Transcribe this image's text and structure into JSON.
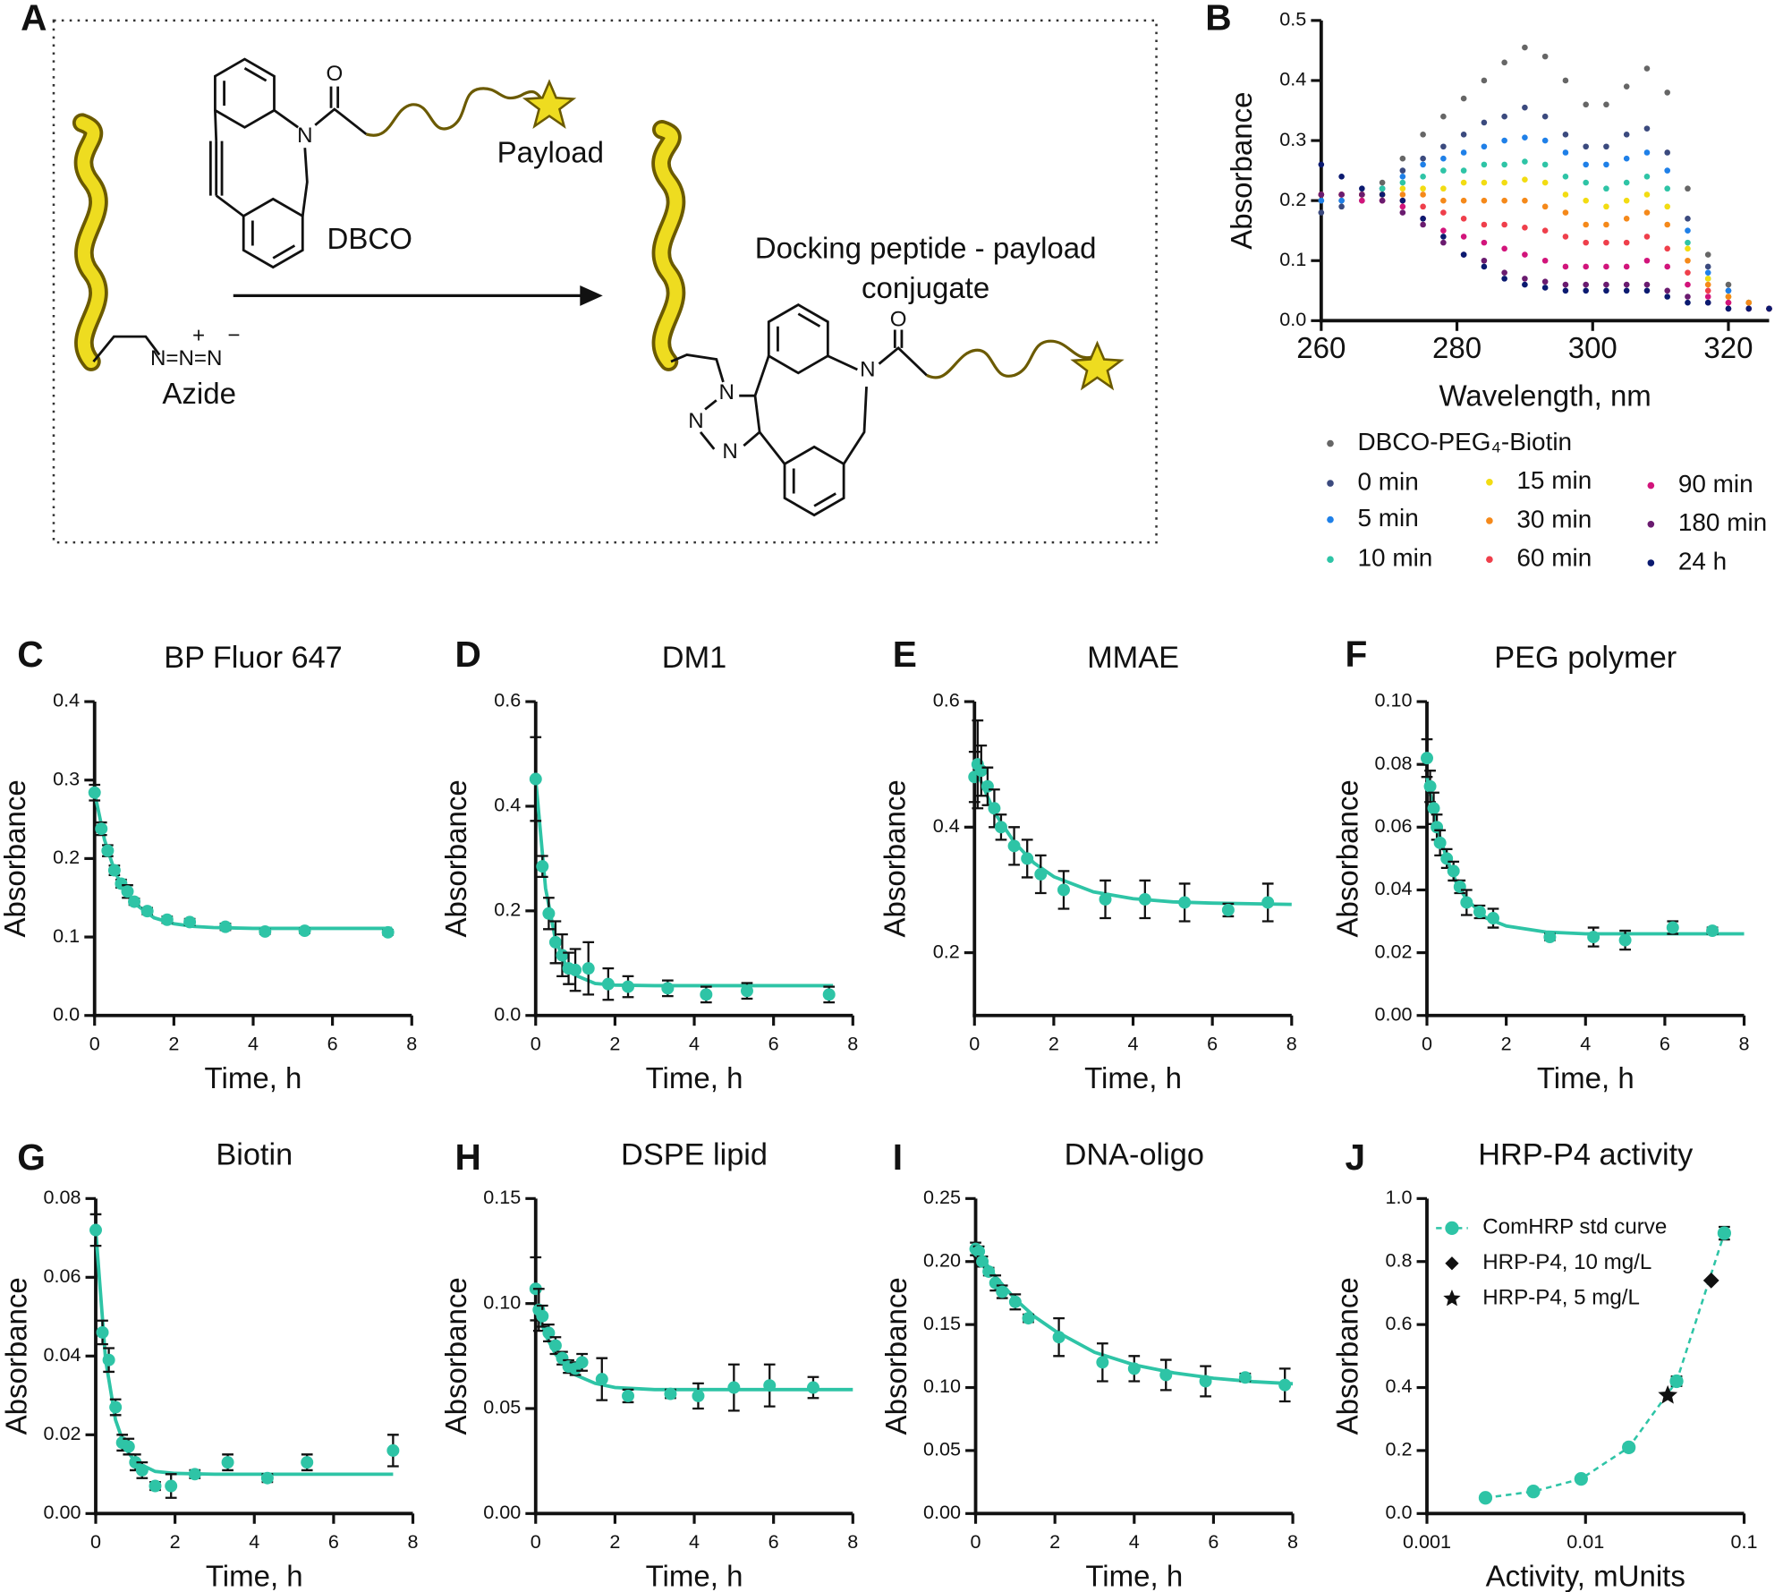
{
  "scheme": {
    "panel": "A",
    "payload": "Payload",
    "dbco": "DBCO",
    "azide": "Azide",
    "product_lines": [
      "Docking peptide - payload",
      "conjugate"
    ],
    "atoms": [
      "O",
      "N",
      "N=N=N",
      "+",
      "−",
      "O",
      "N",
      "N",
      "N",
      "N"
    ]
  },
  "chart_data": [
    {
      "panel": "B",
      "type": "scatter",
      "xlabel": "Wavelength, nm",
      "ylabel": "Absorbance",
      "legend": "below",
      "xlim": [
        260,
        326
      ],
      "ylim": [
        0,
        0.5
      ],
      "xticks": [
        260,
        280,
        300,
        320
      ],
      "yticks": [
        {
          "value": 0,
          "label": "0.0"
        },
        0.1,
        0.2,
        0.3,
        0.4,
        0.5
      ],
      "x": [
        260,
        263,
        266,
        269,
        272,
        275,
        278,
        281,
        284,
        287,
        290,
        293,
        296,
        299,
        302,
        305,
        308,
        311,
        314,
        317,
        320,
        323,
        326
      ],
      "series": [
        {
          "name": "DBCO-PEG₄-Biotin",
          "color": "#666666",
          "values": [
            0.2,
            0.2,
            0.21,
            0.23,
            0.27,
            0.31,
            0.34,
            0.37,
            0.4,
            0.43,
            0.455,
            0.44,
            0.4,
            0.36,
            0.36,
            0.39,
            0.42,
            0.38,
            0.22,
            0.11,
            0.06,
            0.03,
            0.02
          ]
        },
        {
          "name": "0 min",
          "color": "#3b4a7e",
          "values": [
            0.18,
            0.19,
            0.2,
            0.22,
            0.25,
            0.27,
            0.29,
            0.31,
            0.33,
            0.34,
            0.355,
            0.34,
            0.31,
            0.29,
            0.29,
            0.31,
            0.32,
            0.28,
            0.17,
            0.09,
            0.05,
            0.03,
            0.02
          ]
        },
        {
          "name": "5 min",
          "color": "#1f80e8",
          "values": [
            0.2,
            0.2,
            0.21,
            0.22,
            0.24,
            0.26,
            0.27,
            0.28,
            0.29,
            0.3,
            0.305,
            0.3,
            0.28,
            0.26,
            0.26,
            0.27,
            0.28,
            0.25,
            0.15,
            0.08,
            0.05,
            0.03,
            0.02
          ]
        },
        {
          "name": "10 min",
          "color": "#2ec4a6",
          "values": [
            0.21,
            0.21,
            0.21,
            0.22,
            0.23,
            0.24,
            0.25,
            0.25,
            0.26,
            0.26,
            0.265,
            0.26,
            0.24,
            0.23,
            0.22,
            0.23,
            0.24,
            0.22,
            0.13,
            0.07,
            0.04,
            0.03,
            0.02
          ]
        },
        {
          "name": "15 min",
          "color": "#f2dc12",
          "values": [
            0.21,
            0.21,
            0.21,
            0.21,
            0.22,
            0.22,
            0.22,
            0.23,
            0.23,
            0.23,
            0.235,
            0.23,
            0.21,
            0.2,
            0.19,
            0.2,
            0.21,
            0.19,
            0.12,
            0.07,
            0.04,
            0.03,
            0.02
          ]
        },
        {
          "name": "30 min",
          "color": "#f5891a",
          "values": [
            0.21,
            0.21,
            0.21,
            0.21,
            0.21,
            0.21,
            0.2,
            0.2,
            0.2,
            0.2,
            0.2,
            0.19,
            0.18,
            0.16,
            0.16,
            0.17,
            0.18,
            0.16,
            0.1,
            0.06,
            0.04,
            0.03,
            0.02
          ]
        },
        {
          "name": "60 min",
          "color": "#ef3f4b",
          "values": [
            0.21,
            0.21,
            0.21,
            0.2,
            0.2,
            0.19,
            0.18,
            0.17,
            0.16,
            0.16,
            0.155,
            0.15,
            0.14,
            0.13,
            0.13,
            0.13,
            0.14,
            0.12,
            0.08,
            0.05,
            0.03,
            0.02,
            0.02
          ]
        },
        {
          "name": "90 min",
          "color": "#d2147b",
          "values": [
            0.21,
            0.21,
            0.2,
            0.2,
            0.19,
            0.17,
            0.15,
            0.14,
            0.13,
            0.12,
            0.11,
            0.1,
            0.09,
            0.09,
            0.09,
            0.09,
            0.1,
            0.09,
            0.06,
            0.04,
            0.03,
            0.02,
            0.02
          ]
        },
        {
          "name": "180 min",
          "color": "#6a1b6f",
          "values": [
            0.21,
            0.21,
            0.21,
            0.2,
            0.18,
            0.16,
            0.13,
            0.11,
            0.1,
            0.08,
            0.07,
            0.065,
            0.06,
            0.06,
            0.06,
            0.06,
            0.06,
            0.05,
            0.04,
            0.03,
            0.02,
            0.02,
            0.02
          ]
        },
        {
          "name": "24 h",
          "color": "#0b1a70",
          "values": [
            0.26,
            0.24,
            0.22,
            0.21,
            0.2,
            0.17,
            0.14,
            0.11,
            0.09,
            0.07,
            0.06,
            0.055,
            0.05,
            0.05,
            0.05,
            0.05,
            0.05,
            0.04,
            0.03,
            0.03,
            0.02,
            0.02,
            0.02
          ]
        }
      ]
    },
    {
      "panel": "C",
      "type": "scatter",
      "title": "BP Fluor 647",
      "xlabel": "Time, h",
      "ylabel": "Absorbance",
      "color": "#2ec4a6",
      "xlim": [
        0,
        8
      ],
      "ylim": [
        0,
        0.4
      ],
      "xticks": [
        0,
        2,
        4,
        6,
        8
      ],
      "yticks": [
        {
          "value": 0,
          "label": "0.0"
        },
        0.1,
        0.2,
        0.3,
        0.4
      ],
      "x": [
        0,
        0.17,
        0.33,
        0.5,
        0.67,
        0.83,
        1.0,
        1.33,
        1.83,
        2.4,
        3.3,
        4.3,
        5.3,
        7.4
      ],
      "values": [
        0.284,
        0.238,
        0.21,
        0.185,
        0.168,
        0.158,
        0.145,
        0.133,
        0.122,
        0.119,
        0.113,
        0.107,
        0.108,
        0.106
      ],
      "errors": [
        0.01,
        0.008,
        0.007,
        0.006,
        0.005,
        0.008,
        0.004,
        0.004,
        0.004,
        0.004,
        0.004,
        0.003,
        0.003,
        0.003
      ],
      "fit": {
        "x": [
          0,
          0.25,
          0.5,
          0.75,
          1,
          1.5,
          2,
          2.5,
          3,
          4,
          5,
          6,
          7.5
        ],
        "values": [
          0.284,
          0.224,
          0.185,
          0.159,
          0.143,
          0.1245,
          0.117,
          0.1135,
          0.112,
          0.111,
          0.111,
          0.111,
          0.111
        ]
      }
    },
    {
      "panel": "D",
      "type": "scatter",
      "title": "DM1",
      "xlabel": "Time, h",
      "ylabel": "Absorbance",
      "color": "#2ec4a6",
      "xlim": [
        0,
        8
      ],
      "ylim": [
        0,
        0.6
      ],
      "xticks": [
        0,
        2,
        4,
        6,
        8
      ],
      "yticks": [
        {
          "value": 0,
          "label": "0.0"
        },
        0.2,
        0.4,
        0.6
      ],
      "x": [
        0,
        0.17,
        0.33,
        0.5,
        0.67,
        0.83,
        1.0,
        1.33,
        1.83,
        2.33,
        3.33,
        4.3,
        5.33,
        7.4
      ],
      "values": [
        0.452,
        0.285,
        0.195,
        0.14,
        0.115,
        0.09,
        0.087,
        0.09,
        0.06,
        0.055,
        0.052,
        0.04,
        0.047,
        0.04
      ],
      "errors": [
        0.08,
        0.02,
        0.03,
        0.04,
        0.04,
        0.03,
        0.04,
        0.05,
        0.03,
        0.02,
        0.015,
        0.015,
        0.015,
        0.015
      ],
      "fit": {
        "x": [
          0,
          0.25,
          0.5,
          0.75,
          1,
          1.5,
          2,
          3,
          4,
          6,
          7.5
        ],
        "values": [
          0.452,
          0.243,
          0.145,
          0.098,
          0.077,
          0.061,
          0.058,
          0.057,
          0.057,
          0.057,
          0.057
        ]
      }
    },
    {
      "panel": "E",
      "type": "scatter",
      "title": "MMAE",
      "xlabel": "Time, h",
      "ylabel": "Absorbance",
      "color": "#2ec4a6",
      "xlim": [
        0,
        8
      ],
      "ylim": [
        0.1,
        0.6
      ],
      "xticks": [
        0,
        2,
        4,
        6,
        8
      ],
      "yticks": [
        0.2,
        0.4,
        0.6
      ],
      "x": [
        0,
        0.08,
        0.17,
        0.33,
        0.5,
        0.67,
        1.0,
        1.33,
        1.67,
        2.25,
        3.3,
        4.3,
        5.3,
        6.4,
        7.4
      ],
      "values": [
        0.48,
        0.5,
        0.49,
        0.465,
        0.43,
        0.4,
        0.37,
        0.35,
        0.325,
        0.3,
        0.285,
        0.285,
        0.28,
        0.268,
        0.28
      ],
      "errors": [
        0.04,
        0.07,
        0.04,
        0.03,
        0.03,
        0.02,
        0.03,
        0.03,
        0.03,
        0.03,
        0.03,
        0.03,
        0.03,
        0.01,
        0.03
      ],
      "fit": {
        "x": [
          0,
          0.5,
          1,
          1.5,
          2,
          3,
          4,
          5,
          6,
          8
        ],
        "values": [
          0.497,
          0.424,
          0.376,
          0.343,
          0.321,
          0.297,
          0.286,
          0.281,
          0.279,
          0.277
        ]
      }
    },
    {
      "panel": "F",
      "type": "scatter",
      "title": "PEG polymer",
      "xlabel": "Time, h",
      "ylabel": "Absorbance",
      "color": "#2ec4a6",
      "xlim": [
        0,
        8
      ],
      "ylim": [
        0,
        0.1
      ],
      "xticks": [
        0,
        2,
        4,
        6,
        8
      ],
      "yticks": [
        {
          "value": 0,
          "label": "0.00"
        },
        0.02,
        0.04,
        0.06,
        0.08,
        {
          "value": 0.1,
          "label": "0.10"
        }
      ],
      "x": [
        0,
        0.08,
        0.17,
        0.25,
        0.33,
        0.5,
        0.67,
        0.83,
        1.0,
        1.33,
        1.67,
        3.1,
        4.2,
        5.0,
        6.2,
        7.2
      ],
      "values": [
        0.082,
        0.073,
        0.066,
        0.06,
        0.055,
        0.05,
        0.046,
        0.041,
        0.036,
        0.033,
        0.031,
        0.025,
        0.025,
        0.024,
        0.028,
        0.027
      ],
      "errors": [
        0.006,
        0.005,
        0.005,
        0.004,
        0.004,
        0.003,
        0.003,
        0.002,
        0.004,
        0.002,
        0.003,
        0.001,
        0.003,
        0.003,
        0.002,
        0.001
      ],
      "fit": {
        "x": [
          0,
          0.25,
          0.5,
          0.75,
          1,
          1.5,
          2,
          3,
          4,
          6,
          8
        ],
        "values": [
          0.076,
          0.06,
          0.05,
          0.042,
          0.037,
          0.031,
          0.0285,
          0.0266,
          0.026,
          0.026,
          0.026
        ]
      }
    },
    {
      "panel": "G",
      "type": "scatter",
      "title": "Biotin",
      "xlabel": "Time, h",
      "ylabel": "Absorbance",
      "color": "#2ec4a6",
      "xlim": [
        0,
        8
      ],
      "ylim": [
        0,
        0.08
      ],
      "xticks": [
        0,
        2,
        4,
        6,
        8
      ],
      "yticks": [
        {
          "value": 0,
          "label": "0.00"
        },
        0.02,
        0.04,
        0.06,
        0.08
      ],
      "x": [
        0,
        0.17,
        0.33,
        0.5,
        0.67,
        0.83,
        1.0,
        1.17,
        1.5,
        1.9,
        2.5,
        3.33,
        4.33,
        5.33,
        7.5
      ],
      "values": [
        0.072,
        0.046,
        0.039,
        0.027,
        0.018,
        0.017,
        0.013,
        0.011,
        0.007,
        0.007,
        0.01,
        0.013,
        0.009,
        0.013,
        0.016
      ],
      "errors": [
        0.004,
        0.003,
        0.003,
        0.002,
        0.002,
        0.002,
        0.002,
        0.002,
        0.001,
        0.003,
        0.001,
        0.002,
        0.001,
        0.002,
        0.004
      ],
      "fit": {
        "x": [
          0,
          0.25,
          0.5,
          0.75,
          1,
          1.5,
          2,
          3,
          4,
          6,
          7.5
        ],
        "values": [
          0.072,
          0.039,
          0.0238,
          0.0165,
          0.0131,
          0.0107,
          0.0102,
          0.01,
          0.01,
          0.01,
          0.01
        ]
      }
    },
    {
      "panel": "H",
      "type": "scatter",
      "title": "DSPE lipid",
      "xlabel": "Time, h",
      "ylabel": "Absorbance",
      "color": "#2ec4a6",
      "xlim": [
        0,
        8
      ],
      "ylim": [
        0,
        0.15
      ],
      "xticks": [
        0,
        2,
        4,
        6,
        8
      ],
      "yticks": [
        {
          "value": 0,
          "label": "0.00"
        },
        0.05,
        {
          "value": 0.1,
          "label": "0.10"
        },
        0.15
      ],
      "x": [
        0,
        0.08,
        0.17,
        0.33,
        0.5,
        0.67,
        0.83,
        1.0,
        1.17,
        1.67,
        2.33,
        3.4,
        4.1,
        5.0,
        5.9,
        7.0
      ],
      "values": [
        0.107,
        0.097,
        0.094,
        0.086,
        0.08,
        0.074,
        0.07,
        0.069,
        0.072,
        0.064,
        0.056,
        0.057,
        0.056,
        0.06,
        0.061,
        0.06
      ],
      "errors": [
        0.015,
        0.01,
        0.005,
        0.004,
        0.004,
        0.003,
        0.003,
        0.003,
        0.004,
        0.01,
        0.003,
        0.002,
        0.006,
        0.011,
        0.01,
        0.005
      ],
      "fit": {
        "x": [
          0,
          0.25,
          0.5,
          0.75,
          1,
          1.5,
          2,
          3,
          4,
          6,
          8
        ],
        "values": [
          0.099,
          0.085,
          0.076,
          0.07,
          0.066,
          0.062,
          0.06,
          0.059,
          0.059,
          0.059,
          0.059
        ]
      }
    },
    {
      "panel": "I",
      "type": "scatter",
      "title": "DNA-oligo",
      "xlabel": "Time, h",
      "ylabel": "Absorbance",
      "color": "#2ec4a6",
      "xlim": [
        0,
        8
      ],
      "ylim": [
        0,
        0.25
      ],
      "xticks": [
        0,
        2,
        4,
        6,
        8
      ],
      "yticks": [
        {
          "value": 0,
          "label": "0.00"
        },
        0.05,
        {
          "value": 0.1,
          "label": "0.10"
        },
        0.15,
        {
          "value": 0.2,
          "label": "0.20"
        },
        0.25
      ],
      "x": [
        0,
        0.08,
        0.17,
        0.33,
        0.5,
        0.67,
        1.0,
        1.33,
        2.1,
        3.2,
        4.0,
        4.8,
        5.8,
        6.8,
        7.8
      ],
      "values": [
        0.21,
        0.208,
        0.2,
        0.192,
        0.183,
        0.176,
        0.168,
        0.155,
        0.14,
        0.12,
        0.115,
        0.11,
        0.105,
        0.108,
        0.102
      ],
      "errors": [
        0.005,
        0.004,
        0.004,
        0.003,
        0.006,
        0.005,
        0.006,
        0.003,
        0.015,
        0.015,
        0.01,
        0.012,
        0.012,
        0.003,
        0.013
      ],
      "fit": {
        "x": [
          0,
          0.5,
          1,
          1.5,
          2,
          3,
          4,
          5,
          6,
          7,
          8
        ],
        "values": [
          0.21,
          0.188,
          0.17,
          0.156,
          0.145,
          0.128,
          0.118,
          0.1116,
          0.1074,
          0.1047,
          0.103
        ]
      }
    },
    {
      "panel": "J",
      "type": "scatter",
      "title": "HRP-P4 activity",
      "xlabel": "Activity, mUnits",
      "ylabel": "Absorbance",
      "log_x": true,
      "legend": "upper left",
      "xlim": [
        0.001,
        0.1
      ],
      "ylim": [
        0,
        1
      ],
      "xticks": [
        0.001,
        0.01,
        0.1
      ],
      "yticks": [
        {
          "value": 0,
          "label": "0.0"
        },
        0.2,
        0.4,
        0.6,
        0.8,
        {
          "value": 1,
          "label": "1.0"
        }
      ],
      "series": [
        {
          "name": "ComHRP std curve",
          "color": "#2ec4a6",
          "marker": "circle",
          "line": "dashed",
          "x": [
            0.00234,
            0.00469,
            0.00938,
            0.01875,
            0.0375,
            0.075
          ],
          "values": [
            0.05,
            0.07,
            0.11,
            0.21,
            0.42,
            0.89
          ],
          "errors": [
            0.005,
            0.005,
            0.005,
            0.01,
            0.015,
            0.02
          ]
        },
        {
          "name": "HRP-P4, 10 mg/L",
          "color": "#111111",
          "marker": "diamond",
          "x": [
            0.062
          ],
          "values": [
            0.74
          ]
        },
        {
          "name": "HRP-P4, 5 mg/L",
          "color": "#111111",
          "marker": "star",
          "x": [
            0.033
          ],
          "values": [
            0.375
          ]
        }
      ]
    }
  ]
}
